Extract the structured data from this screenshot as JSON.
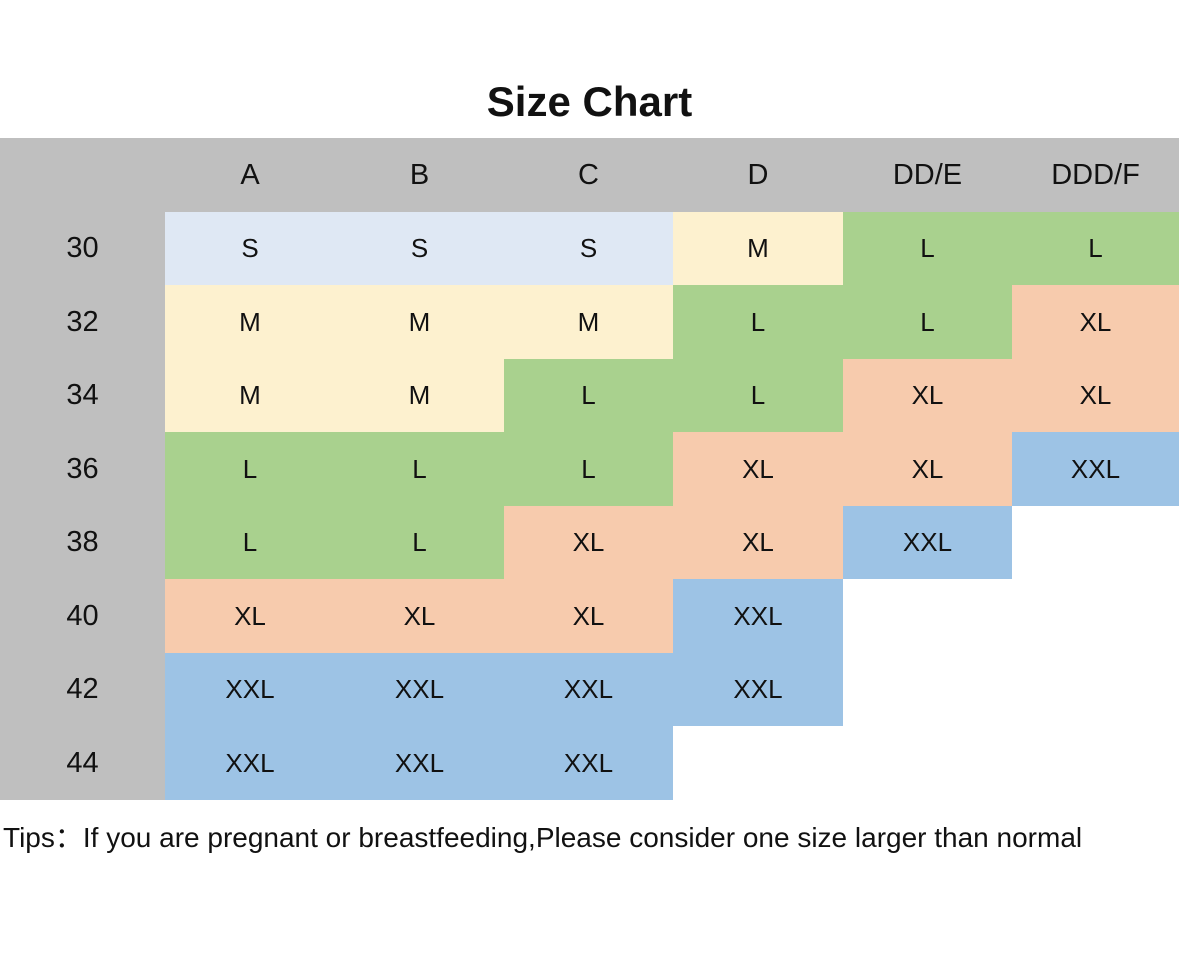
{
  "title": "Size Chart",
  "columns": [
    "",
    "A",
    "B",
    "C",
    "D",
    "DD/E",
    "DDD/F"
  ],
  "rows": [
    {
      "band": "30",
      "sizes": [
        "S",
        "S",
        "S",
        "M",
        "L",
        "L"
      ]
    },
    {
      "band": "32",
      "sizes": [
        "M",
        "M",
        "M",
        "L",
        "L",
        "XL"
      ]
    },
    {
      "band": "34",
      "sizes": [
        "M",
        "M",
        "L",
        "L",
        "XL",
        "XL"
      ]
    },
    {
      "band": "36",
      "sizes": [
        "L",
        "L",
        "L",
        "XL",
        "XL",
        "XXL"
      ]
    },
    {
      "band": "38",
      "sizes": [
        "L",
        "L",
        "XL",
        "XL",
        "XXL",
        ""
      ]
    },
    {
      "band": "40",
      "sizes": [
        "XL",
        "XL",
        "XL",
        "XXL",
        "",
        ""
      ]
    },
    {
      "band": "42",
      "sizes": [
        "XXL",
        "XXL",
        "XXL",
        "XXL",
        "",
        ""
      ]
    },
    {
      "band": "44",
      "sizes": [
        "XXL",
        "XXL",
        "XXL",
        "",
        "",
        ""
      ]
    }
  ],
  "size_colors": {
    "S": "#dfe8f4",
    "M": "#fdf1cf",
    "L": "#a9d18e",
    "XL": "#f7cbad",
    "XXL": "#9dc3e5",
    "header": "#bfbfbf",
    "empty": "#ffffff"
  },
  "tips": "Tips：If you are pregnant or breastfeeding,Please consider one size larger than normal"
}
